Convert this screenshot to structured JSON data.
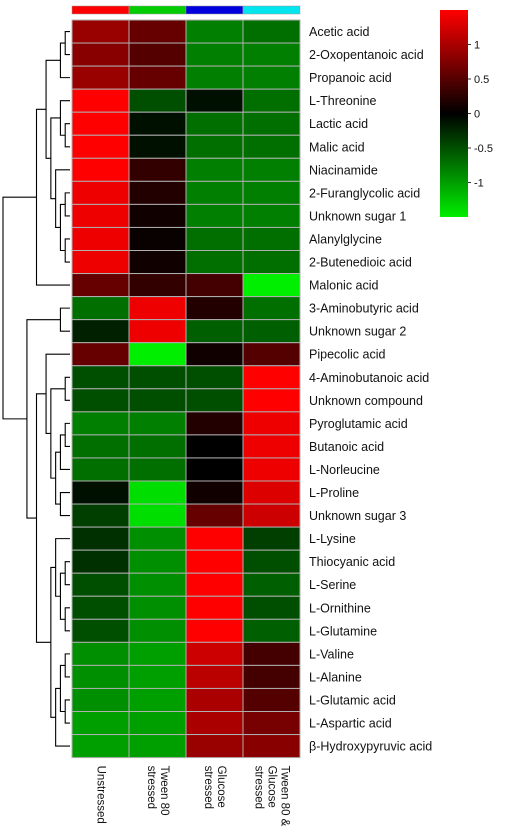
{
  "chart_data": {
    "type": "heatmap",
    "title": "",
    "columns": [
      "Unstressed",
      "Tween 80 stressed",
      "Glucose stressed",
      "Tween 80 & Glucose stressed"
    ],
    "column_label_lines": [
      [
        "Unstressed"
      ],
      [
        "Tween 80",
        "stressed"
      ],
      [
        "Glucose",
        "stressed"
      ],
      [
        "Tween 80 &",
        "Glucose",
        "stressed"
      ]
    ],
    "column_group_colors": [
      "#ff0000",
      "#00cc00",
      "#0000dd",
      "#00e5ee"
    ],
    "rows": [
      "Acetic acid",
      "2-Oxopentanoic acid",
      "Propanoic acid",
      "L-Threonine",
      "Lactic acid",
      "Malic acid",
      "Niacinamide",
      "2-Furanglycolic acid",
      "Unknown sugar 1",
      "Alanylglycine",
      "2-Butenedioic acid",
      "Malonic acid",
      "3-Aminobutyric acid",
      "Unknown sugar 2",
      "Pipecolic acid",
      "4-Aminobutanoic acid",
      "Unknown compound",
      "Pyroglutamic acid",
      "Butanoic acid",
      "L-Norleucine",
      "L-Proline",
      "Unknown sugar 3",
      "L-Lysine",
      "Thiocyanic acid",
      "L-Serine",
      "L-Ornithine",
      "L-Glutamine",
      "L-Valine",
      "L-Alanine",
      "L-Glutamic acid",
      "L-Aspartic acid",
      "β-Hydroxypyruvic acid"
    ],
    "values": [
      [
        0.9,
        0.6,
        -0.8,
        -0.7
      ],
      [
        0.8,
        0.5,
        -0.8,
        -0.8
      ],
      [
        0.9,
        0.6,
        -0.8,
        -0.8
      ],
      [
        1.5,
        -0.5,
        -0.1,
        -0.7
      ],
      [
        1.5,
        -0.1,
        -0.7,
        -0.7
      ],
      [
        1.5,
        -0.1,
        -0.7,
        -0.7
      ],
      [
        1.5,
        0.3,
        -0.8,
        -0.8
      ],
      [
        1.4,
        0.2,
        -0.8,
        -0.8
      ],
      [
        1.4,
        0.1,
        -0.8,
        -0.8
      ],
      [
        1.4,
        0.05,
        -0.7,
        -0.7
      ],
      [
        1.4,
        0.1,
        -0.7,
        -0.7
      ],
      [
        0.6,
        0.3,
        0.4,
        -1.5
      ],
      [
        -0.7,
        1.4,
        0.2,
        -0.7
      ],
      [
        -0.2,
        1.4,
        -0.6,
        -0.6
      ],
      [
        0.6,
        -1.5,
        0.1,
        0.5
      ],
      [
        -0.5,
        -0.5,
        -0.5,
        1.5
      ],
      [
        -0.5,
        -0.5,
        -0.5,
        1.5
      ],
      [
        -0.8,
        -0.8,
        0.2,
        1.4
      ],
      [
        -0.7,
        -0.7,
        0.0,
        1.4
      ],
      [
        -0.7,
        -0.7,
        0.0,
        1.4
      ],
      [
        -0.1,
        -1.4,
        0.1,
        1.3
      ],
      [
        -0.4,
        -1.4,
        0.6,
        1.2
      ],
      [
        -0.3,
        -0.9,
        1.5,
        -0.4
      ],
      [
        -0.3,
        -0.9,
        1.5,
        -0.5
      ],
      [
        -0.5,
        -0.9,
        1.5,
        -0.6
      ],
      [
        -0.5,
        -0.9,
        1.5,
        -0.5
      ],
      [
        -0.5,
        -0.9,
        1.5,
        -0.6
      ],
      [
        -0.9,
        -1.0,
        1.2,
        0.4
      ],
      [
        -0.9,
        -1.0,
        1.1,
        0.4
      ],
      [
        -0.9,
        -1.0,
        1.0,
        0.5
      ],
      [
        -1.0,
        -1.0,
        1.0,
        0.7
      ],
      [
        -1.0,
        -1.0,
        0.9,
        0.8
      ]
    ],
    "color_scale": {
      "min": -1.5,
      "max": 1.5,
      "low": "#00ee00",
      "mid": "#000000",
      "high": "#ff0000"
    },
    "colorbar_ticks": [
      1,
      0.5,
      0,
      -0.5,
      -1
    ],
    "colorbar_tick_labels": [
      "1",
      "0.5",
      "0",
      "-0.5",
      "-1"
    ],
    "row_dendrogram": [
      [
        0,
        1
      ],
      [
        2,
        "n0"
      ],
      [
        4,
        5
      ],
      [
        3,
        "n2"
      ],
      [
        7,
        8
      ],
      [
        9,
        10
      ],
      [
        "n4",
        "n5"
      ],
      [
        6,
        "n6"
      ],
      [
        "n3",
        "n7"
      ],
      [
        "n1",
        "n8"
      ],
      [
        "n9",
        11
      ],
      [
        12,
        13
      ],
      [
        15,
        16
      ],
      [
        17,
        18
      ],
      [
        "n13",
        19
      ],
      [
        20,
        21
      ],
      [
        "n14",
        "n15"
      ],
      [
        "n12",
        "n16"
      ],
      [
        14,
        "n17"
      ],
      [
        23,
        24
      ],
      [
        25,
        26
      ],
      [
        "n19",
        "n20"
      ],
      [
        22,
        "n21"
      ],
      [
        27,
        28
      ],
      [
        29,
        30
      ],
      [
        "n23",
        "n24"
      ],
      [
        "n25",
        31
      ],
      [
        "n22",
        "n26"
      ],
      [
        "n18",
        "n27"
      ],
      [
        "n11",
        "n28"
      ],
      [
        "n10",
        "n29"
      ]
    ],
    "row_dendrogram_heights": [
      1,
      2,
      1,
      2,
      1,
      1,
      2,
      3,
      4,
      5,
      7,
      2,
      1,
      1,
      2,
      2,
      3,
      4,
      5,
      1,
      1,
      2,
      3,
      1,
      1,
      2,
      3,
      4,
      7,
      9,
      14
    ]
  }
}
